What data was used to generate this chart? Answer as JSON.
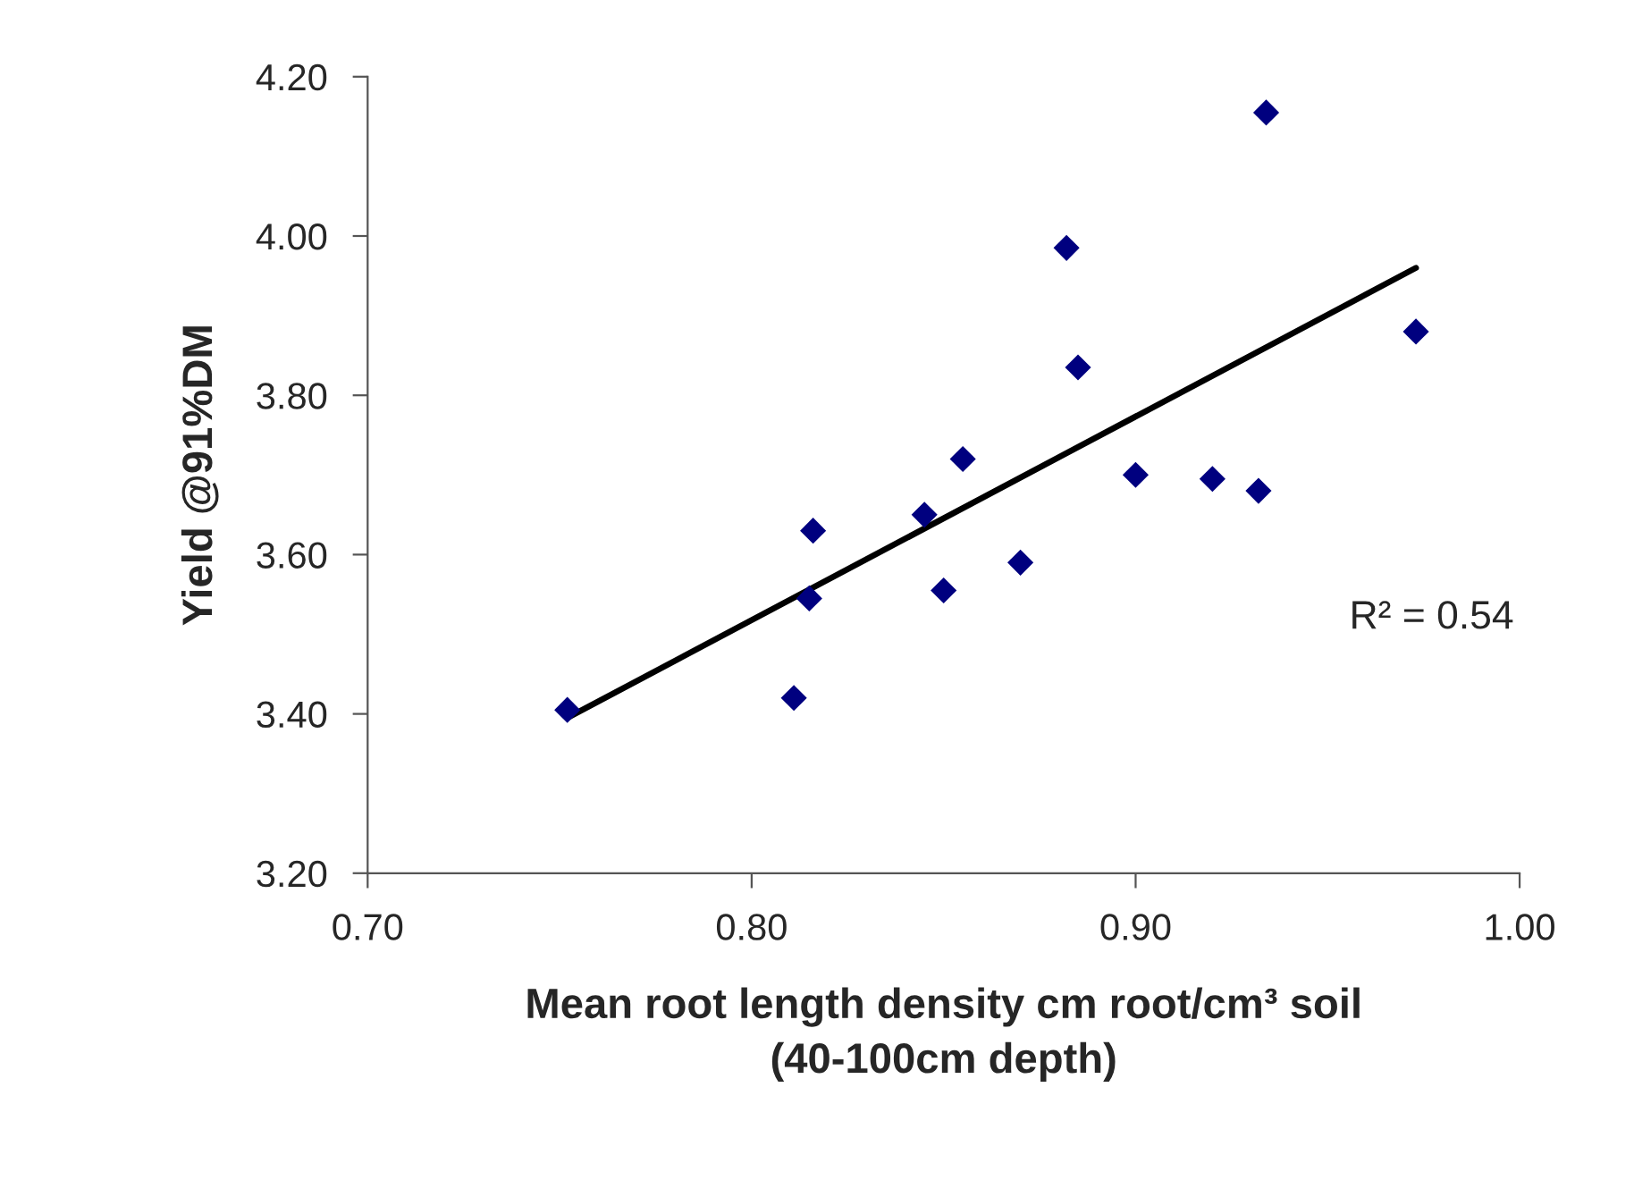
{
  "chart_data": {
    "type": "scatter",
    "xlabel": "Mean root length density cm root/cm³ soil\n(40-100cm depth)",
    "ylabel": "Yield @91%DM",
    "annotations": [
      "R² = 0.54"
    ],
    "series": [
      {
        "color": "#00007f",
        "marker": "diamond",
        "x": [
          0.752,
          0.811,
          0.815,
          0.816,
          0.845,
          0.85,
          0.855,
          0.87,
          0.882,
          0.885,
          0.9,
          0.92,
          0.932,
          0.934,
          0.973
        ],
        "values": [
          3.405,
          3.42,
          3.545,
          3.63,
          3.65,
          3.555,
          3.72,
          3.59,
          3.985,
          3.835,
          3.7,
          3.695,
          3.68,
          4.155,
          3.88
        ]
      },
      {
        "type": "line",
        "color": "#000000",
        "marker": "none",
        "line_style": "solid",
        "x": [
          0.752,
          0.973
        ],
        "values": [
          3.395,
          3.96
        ]
      }
    ],
    "xlim": [
      0.7,
      1.0
    ],
    "xticks": [
      {
        "value": 0.7,
        "label": "0.70"
      },
      {
        "value": 0.8,
        "label": "0.80"
      },
      {
        "value": 0.9,
        "label": "0.90"
      },
      {
        "value": 1.0,
        "label": "1.00"
      }
    ],
    "ylim": [
      3.2,
      4.2
    ],
    "yticks": [
      {
        "value": 3.2,
        "label": "3.20"
      },
      {
        "value": 3.4,
        "label": "3.40"
      },
      {
        "value": 3.6,
        "label": "3.60"
      },
      {
        "value": 3.8,
        "label": "3.80"
      },
      {
        "value": 4.0,
        "label": "4.00"
      },
      {
        "value": 4.2,
        "label": "4.20"
      }
    ],
    "grid": false,
    "legend": false
  }
}
